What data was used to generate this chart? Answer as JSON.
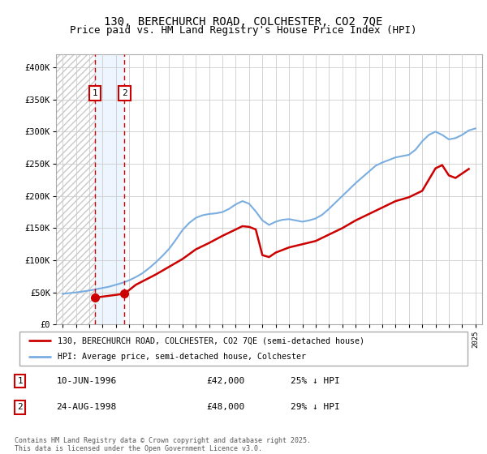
{
  "title": "130, BERECHURCH ROAD, COLCHESTER, CO2 7QE",
  "subtitle": "Price paid vs. HM Land Registry's House Price Index (HPI)",
  "ylim": [
    0,
    420000
  ],
  "yticks": [
    0,
    50000,
    100000,
    150000,
    200000,
    250000,
    300000,
    350000,
    400000
  ],
  "ytick_labels": [
    "£0",
    "£50K",
    "£100K",
    "£150K",
    "£200K",
    "£250K",
    "£300K",
    "£350K",
    "£400K"
  ],
  "grid_color": "#cccccc",
  "purchase1_date": 1996.44,
  "purchase1_price": 42000,
  "purchase2_date": 1998.64,
  "purchase2_price": 48000,
  "legend_entries": [
    "130, BERECHURCH ROAD, COLCHESTER, CO2 7QE (semi-detached house)",
    "HPI: Average price, semi-detached house, Colchester"
  ],
  "legend_line_colors": [
    "#cc0000",
    "#7aade0"
  ],
  "annotation1_date": "10-JUN-1996",
  "annotation1_price": "£42,000",
  "annotation1_hpi": "25% ↓ HPI",
  "annotation2_date": "24-AUG-1998",
  "annotation2_price": "£48,000",
  "annotation2_hpi": "29% ↓ HPI",
  "copyright_text": "Contains HM Land Registry data © Crown copyright and database right 2025.\nThis data is licensed under the Open Government Licence v3.0.",
  "title_fontsize": 10,
  "subtitle_fontsize": 9,
  "hpi_line_color": "#7aade0",
  "price_line_color": "#cc0000",
  "hpi_years": [
    1994,
    1994.5,
    1995,
    1995.5,
    1996,
    1996.5,
    1997,
    1997.5,
    1998,
    1998.5,
    1999,
    1999.5,
    2000,
    2000.5,
    2001,
    2001.5,
    2002,
    2002.5,
    2003,
    2003.5,
    2004,
    2004.5,
    2005,
    2005.5,
    2006,
    2006.5,
    2007,
    2007.5,
    2008,
    2008.5,
    2009,
    2009.5,
    2010,
    2010.5,
    2011,
    2011.5,
    2012,
    2012.5,
    2013,
    2013.5,
    2014,
    2014.5,
    2015,
    2015.5,
    2016,
    2016.5,
    2017,
    2017.5,
    2018,
    2018.5,
    2019,
    2019.5,
    2020,
    2020.5,
    2021,
    2021.5,
    2022,
    2022.5,
    2023,
    2023.5,
    2024,
    2024.5,
    2025
  ],
  "hpi_values": [
    48000,
    49000,
    50000,
    51500,
    53000,
    55000,
    57000,
    59000,
    62000,
    65000,
    69000,
    74000,
    80000,
    88000,
    97000,
    107000,
    118000,
    132000,
    147000,
    158000,
    166000,
    170000,
    172000,
    173000,
    175000,
    180000,
    187000,
    192000,
    188000,
    176000,
    162000,
    155000,
    160000,
    163000,
    164000,
    162000,
    160000,
    162000,
    165000,
    171000,
    180000,
    190000,
    200000,
    210000,
    220000,
    229000,
    238000,
    247000,
    252000,
    256000,
    260000,
    262000,
    264000,
    272000,
    285000,
    295000,
    300000,
    295000,
    288000,
    290000,
    295000,
    302000,
    305000
  ],
  "price_years": [
    1996.44,
    1998.64,
    1999.5,
    2001,
    2002,
    2003,
    2004,
    2005,
    2006,
    2007,
    2007.5,
    2008,
    2008.5,
    2009,
    2009.5,
    2010,
    2011,
    2012,
    2013,
    2014,
    2015,
    2016,
    2017,
    2018,
    2019,
    2020,
    2021,
    2022,
    2022.5,
    2023,
    2023.5,
    2024,
    2024.5
  ],
  "price_values": [
    42000,
    48000,
    62000,
    78000,
    90000,
    102000,
    117000,
    127000,
    138000,
    148000,
    153000,
    152000,
    148000,
    108000,
    105000,
    112000,
    120000,
    125000,
    130000,
    140000,
    150000,
    162000,
    172000,
    182000,
    192000,
    198000,
    208000,
    243000,
    248000,
    232000,
    228000,
    235000,
    242000
  ],
  "xmin": 1993.5,
  "xmax": 2025.5
}
